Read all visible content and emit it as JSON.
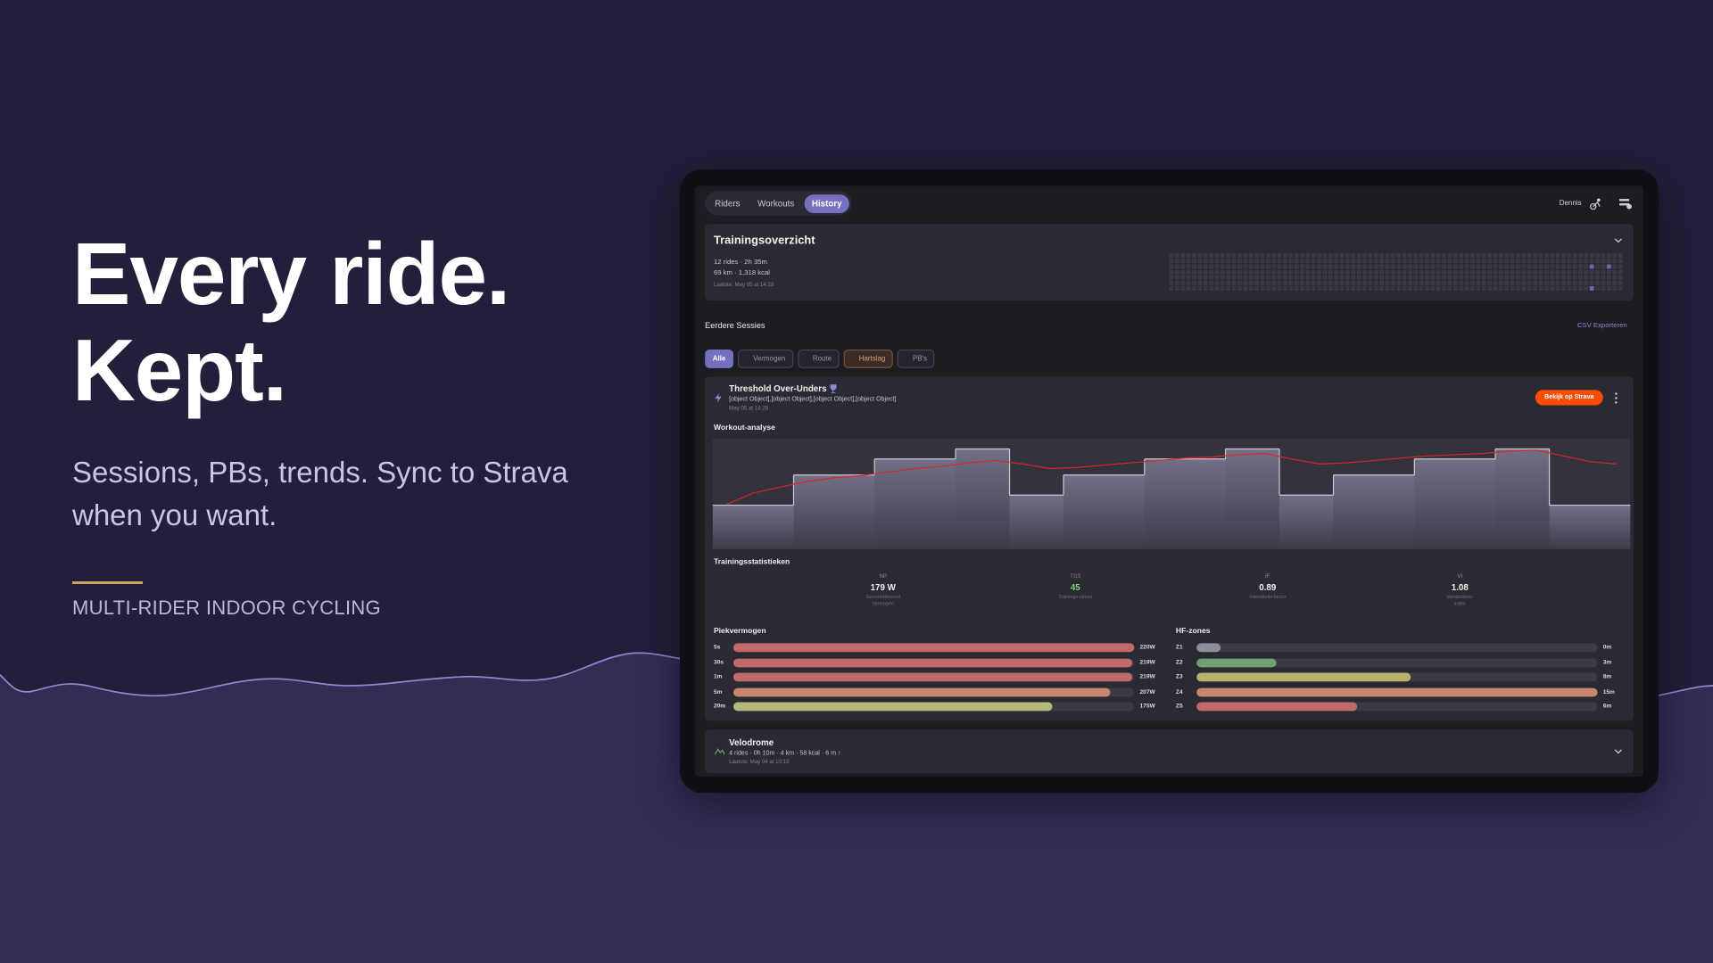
{
  "hero": {
    "title_lines": [
      "Every ride.",
      "Kept."
    ],
    "subtitle_lines": [
      "Sessions, PBs, trends. Sync to Strava",
      "when you want."
    ],
    "tagline": "MULTI-RIDER INDOOR CYCLING"
  },
  "app": {
    "nav": {
      "tabs": [
        "Riders",
        "Workouts",
        "History"
      ],
      "active_tab": 2,
      "user": "Dennis"
    },
    "overview": {
      "title": "Trainingsoverzicht",
      "stats": [
        "12 rides · 2h 35m",
        "69 km · 1,318 kcal"
      ],
      "last": "Laatste: May 05 at 14:28"
    },
    "sessions": {
      "title": "Eerdere Sessies",
      "export": "CSV Exporteren",
      "filters": [
        "Alle",
        "Vermogen",
        "Route",
        "Hartslag",
        "PB's"
      ],
      "active_filter": 0
    },
    "session": {
      "title": "Threshold Over-Unders",
      "stats": [
        {
          "label": "NP",
          "value": "179 W",
          "description": "Genormaliseerd Vermogen"
        },
        {
          "label": "TSS",
          "value": "45",
          "description": "Trainings-stress",
          "color": "#7fcf7f"
        },
        {
          "label": "IF",
          "value": "0.89",
          "description": "Intensiteits-factor"
        },
        {
          "label": "VI",
          "value": "1.08",
          "description": "Variabiliteits-index"
        }
      ],
      "date": "May 05 at 14:28",
      "strava_button": "Bekijk op Strava",
      "analysis_title": "Workout-analyse",
      "workout_chart": {
        "type": "area",
        "power": [
          110,
          110,
          110,
          185,
          185,
          185,
          225,
          225,
          225,
          250,
          250,
          135,
          135,
          185,
          185,
          185,
          225,
          225,
          225,
          250,
          250,
          135,
          135,
          185,
          185,
          185,
          225,
          225,
          225,
          250,
          250,
          110,
          110,
          110
        ],
        "power_color": "#c9c9d8",
        "heart_rate": [
          105,
          115,
          120,
          125,
          128,
          130,
          133,
          136,
          138,
          141,
          143,
          140,
          136,
          137,
          139,
          141,
          143,
          145,
          146,
          148,
          149,
          144,
          140,
          141,
          143,
          145,
          147,
          148,
          149,
          151,
          152,
          147,
          142,
          140
        ],
        "heart_rate_color": "#d8262a"
      },
      "stats_title": "Trainingsstatistieken",
      "peak_power": {
        "title": "Piekvermogen",
        "rows": [
          {
            "label": "5s",
            "value": 220,
            "value_label": "220W",
            "color": "#c26a6a"
          },
          {
            "label": "30s",
            "value": 219,
            "value_label": "219W",
            "color": "#c26a6a"
          },
          {
            "label": "1m",
            "value": 219,
            "value_label": "219W",
            "color": "#c26a6a"
          },
          {
            "label": "5m",
            "value": 207,
            "value_label": "207W",
            "color": "#c8866a"
          },
          {
            "label": "20m",
            "value": 175,
            "value_label": "175W",
            "color": "#b7b779"
          }
        ]
      },
      "hr_zones": {
        "title": "HF-zones",
        "rows": [
          {
            "label": "Z1",
            "value": 0,
            "value_label": "0m",
            "color": "#8c8f9c"
          },
          {
            "label": "Z2",
            "value": 3,
            "value_label": "3m",
            "color": "#6f9f72"
          },
          {
            "label": "Z3",
            "value": 8,
            "value_label": "8m",
            "color": "#b9b26c"
          },
          {
            "label": "Z4",
            "value": 15,
            "value_label": "15m",
            "color": "#c8866a"
          },
          {
            "label": "Z5",
            "value": 6,
            "value_label": "6m",
            "color": "#c26a6a"
          }
        ]
      }
    },
    "velodrome": {
      "title": "Velodrome",
      "stats": "4 rides · 0h 10m · 4 km · 58 kcal · 6 m ↑",
      "last": "Laatste: May 04 at 10:19"
    }
  }
}
